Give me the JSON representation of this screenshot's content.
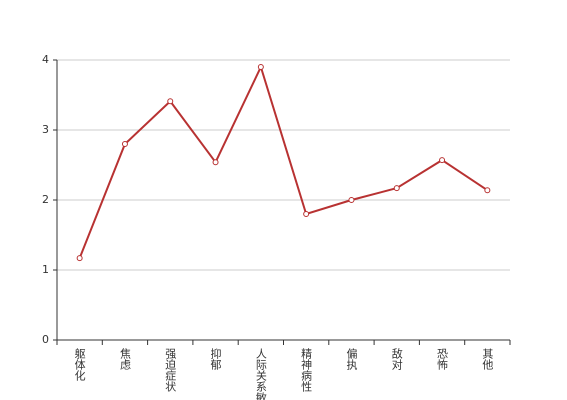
{
  "chart_data": {
    "type": "line",
    "categories": [
      "躯体化",
      "焦虑",
      "强迫症状",
      "抑郁",
      "人际关系敏感",
      "精神病性",
      "偏执",
      "敌对",
      "恐怖",
      "其他"
    ],
    "series": [
      {
        "color": "#b83232",
        "values": [
          1.17,
          2.8,
          3.41,
          2.54,
          3.9,
          1.8,
          2.0,
          2.17,
          2.57,
          2.14
        ]
      }
    ],
    "ylim": [
      0,
      4
    ],
    "yticks": [
      0,
      1,
      2,
      3,
      4
    ],
    "grid": true
  }
}
